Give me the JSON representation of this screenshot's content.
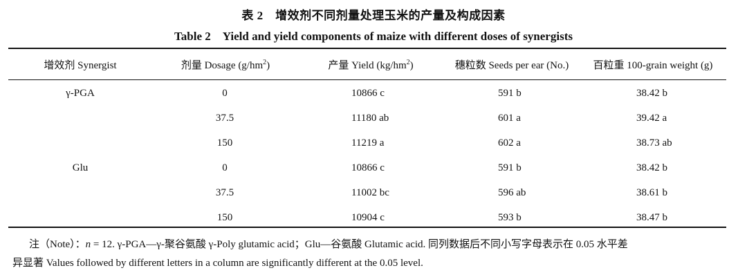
{
  "title_cn": "表 2　增效剂不同剂量处理玉米的产量及构成因素",
  "title_en": "Table 2　Yield and yield components of maize with different doses of synergists",
  "headers": {
    "synergist": "增效剂 Synergist",
    "dosage": "剂量 Dosage (g/hm",
    "dosage_sup": "2",
    "dosage_end": ")",
    "yield": "产量 Yield (kg/hm",
    "yield_sup": "2",
    "yield_end": ")",
    "seeds": "穗粒数 Seeds per ear (No.)",
    "weight": "百粒重 100-grain weight (g)"
  },
  "rows": [
    {
      "synergist": "γ-PGA",
      "dosage": "0",
      "yield": "10866 c",
      "seeds": "591 b",
      "weight": "38.42 b"
    },
    {
      "synergist": "",
      "dosage": "37.5",
      "yield": "11180 ab",
      "seeds": "601 a",
      "weight": "39.42 a"
    },
    {
      "synergist": "",
      "dosage": "150",
      "yield": "11219 a",
      "seeds": "602 a",
      "weight": "38.73 ab"
    },
    {
      "synergist": "Glu",
      "dosage": "0",
      "yield": "10866 c",
      "seeds": "591 b",
      "weight": "38.42 b"
    },
    {
      "synergist": "",
      "dosage": "37.5",
      "yield": "11002 bc",
      "seeds": "596 ab",
      "weight": "38.61 b"
    },
    {
      "synergist": "",
      "dosage": "150",
      "yield": "10904 c",
      "seeds": "593 b",
      "weight": "38.47 b"
    }
  ],
  "note": {
    "prefix": "注（Note）：",
    "n_var": "n",
    "line1_rest": " = 12. γ-PGA—γ-聚谷氨酸 γ-Poly glutamic acid；Glu—谷氨酸 Glutamic acid. 同列数据后不同小写字母表示在 0.05 水平差",
    "line2": "异显著 Values followed by different letters in a column are significantly different at the 0.05 level."
  }
}
